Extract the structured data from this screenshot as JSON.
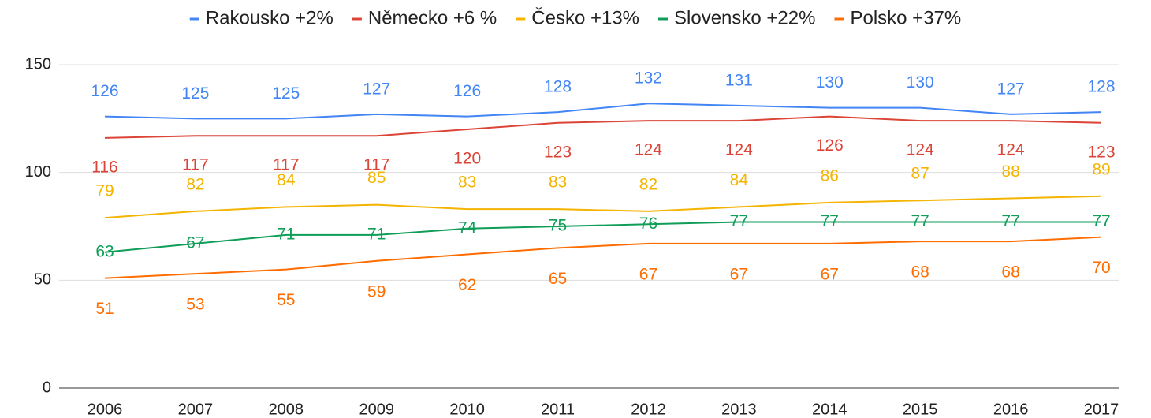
{
  "chart_data": {
    "type": "line",
    "categories": [
      "2006",
      "2007",
      "2008",
      "2009",
      "2010",
      "2011",
      "2012",
      "2013",
      "2014",
      "2015",
      "2016",
      "2017"
    ],
    "series": [
      {
        "name": "Rakousko +2%",
        "color": "#4285f4",
        "values": [
          126,
          125,
          125,
          127,
          126,
          128,
          132,
          131,
          130,
          130,
          127,
          128
        ]
      },
      {
        "name": "Německo +6 %",
        "color": "#db4437",
        "values": [
          116,
          117,
          117,
          117,
          120,
          123,
          124,
          124,
          126,
          124,
          124,
          123
        ]
      },
      {
        "name": "Česko +13%",
        "color": "#f4b400",
        "values": [
          79,
          82,
          84,
          85,
          83,
          83,
          82,
          84,
          86,
          87,
          88,
          89
        ]
      },
      {
        "name": "Slovensko +22%",
        "color": "#0f9d58",
        "values": [
          63,
          67,
          71,
          71,
          74,
          75,
          76,
          77,
          77,
          77,
          77,
          77
        ]
      },
      {
        "name": "Polsko +37%",
        "color": "#ff6d00",
        "values": [
          51,
          53,
          55,
          59,
          62,
          65,
          67,
          67,
          67,
          68,
          68,
          70
        ]
      }
    ],
    "ylim": [
      0,
      150
    ],
    "yticks": [
      0,
      50,
      100,
      150
    ],
    "grid": true,
    "legend": "top",
    "data_labels": true
  }
}
